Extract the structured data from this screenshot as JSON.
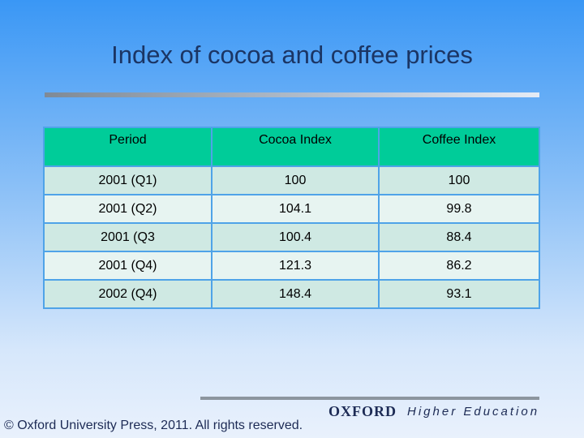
{
  "title": "Index of cocoa and coffee prices",
  "table": {
    "header": [
      "Period",
      "Cocoa Index",
      "Coffee Index"
    ],
    "rows": [
      [
        "2001 (Q1)",
        "100",
        "100"
      ],
      [
        "2001 (Q2)",
        "104.1",
        "99.8"
      ],
      [
        "2001 (Q3",
        "100.4",
        "88.4"
      ],
      [
        "2001 (Q4)",
        "121.3",
        "86.2"
      ],
      [
        "2002 (Q4)",
        "148.4",
        "93.1"
      ]
    ]
  },
  "footer": {
    "copyright": "© Oxford University Press, 2011. All rights reserved.",
    "publisher": "OXFORD",
    "division": "Higher Education"
  }
}
